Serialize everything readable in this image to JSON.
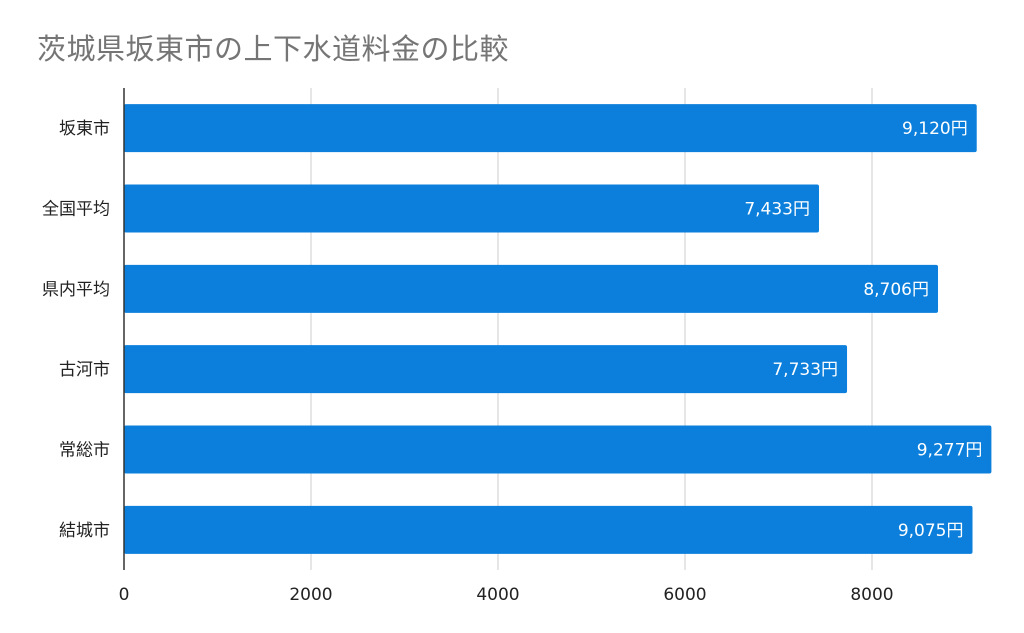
{
  "chart_data": {
    "type": "bar",
    "orientation": "horizontal",
    "title": "茨城県坂東市の上下水道料金の比較",
    "categories": [
      "坂東市",
      "全国平均",
      "県内平均",
      "古河市",
      "常総市",
      "結城市"
    ],
    "values": [
      9120,
      7433,
      8706,
      7733,
      9277,
      9075
    ],
    "data_labels": [
      "9,120円",
      "7,433円",
      "8,706円",
      "7,733円",
      "9,277円",
      "9,075円"
    ],
    "xlim": [
      0,
      9300
    ],
    "xticks": [
      0,
      2000,
      4000,
      6000,
      8000
    ],
    "xtick_labels": [
      "0",
      "2000",
      "4000",
      "6000",
      "8000"
    ],
    "grid": true,
    "bar_color": "#0b7fdb",
    "legend": "none"
  }
}
